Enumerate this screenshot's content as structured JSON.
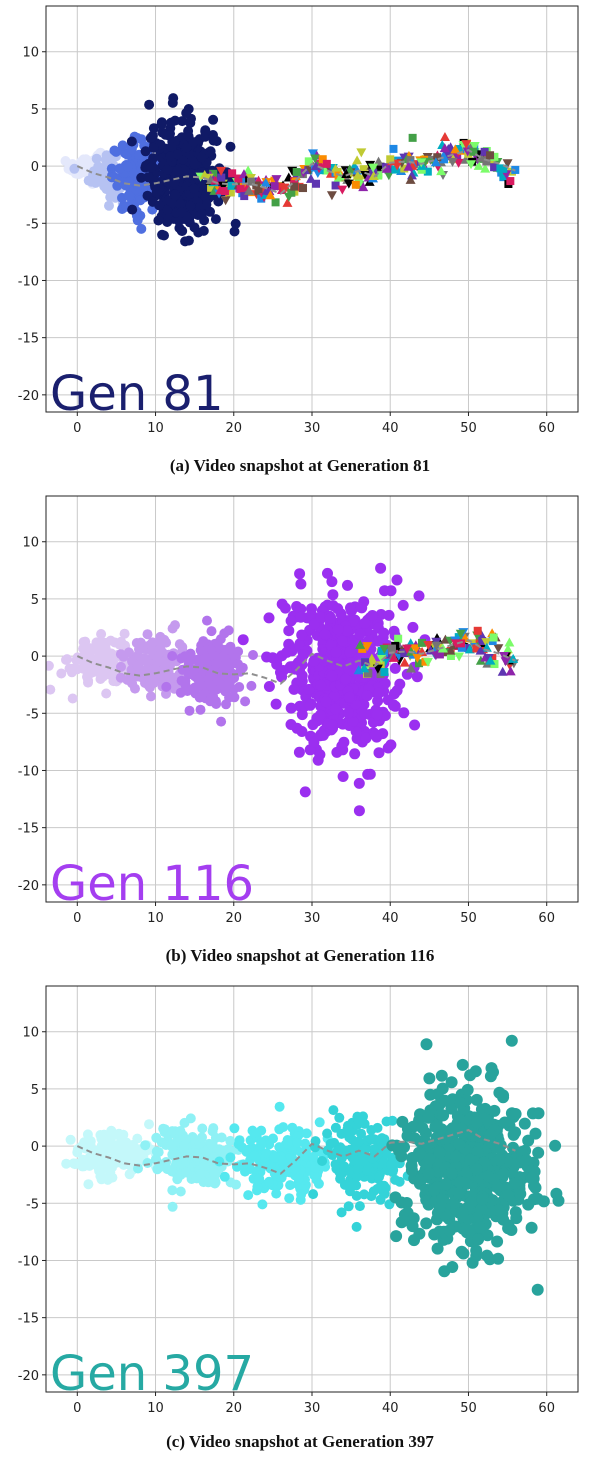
{
  "chart_data": [
    {
      "type": "scatter",
      "generation": 81,
      "label": "Gen 81",
      "label_color": "#1a1f6e",
      "caption": "(a) Video snapshot at Generation 81",
      "xlim": [
        -4,
        64
      ],
      "ylim": [
        -21.5,
        14
      ],
      "x_ticks": [
        0,
        10,
        20,
        30,
        40,
        50,
        60
      ],
      "y_ticks": [
        10,
        5,
        0,
        -5,
        -10,
        -15,
        -20
      ],
      "grid": true,
      "trend_path": {
        "x": [
          0,
          2,
          4,
          6,
          8,
          10,
          12,
          14,
          16,
          18,
          20,
          22,
          24,
          26,
          28,
          30,
          32,
          34,
          36,
          38,
          40,
          42,
          44,
          46,
          48,
          50,
          52,
          54,
          56
        ],
        "y": [
          0,
          -0.6,
          -1.0,
          -1.5,
          -1.7,
          -1.5,
          -1.2,
          -0.9,
          -1.0,
          -1.5,
          -1.6,
          -1.5,
          -1.9,
          -2.4,
          -1.2,
          0.2,
          -0.4,
          -0.9,
          -0.4,
          -0.9,
          0.3,
          0.4,
          0.2,
          0.6,
          1.0,
          1.4,
          0.6,
          0.2,
          -0.4
        ]
      },
      "clusters": [
        {
          "cx": 1,
          "cy": 0,
          "rx": 2,
          "ry": 1.5,
          "color": "#e4e8fb",
          "n": 40,
          "r": 5
        },
        {
          "cx": 4,
          "cy": -0.6,
          "rx": 2.5,
          "ry": 2,
          "color": "#b6c2f2",
          "n": 70,
          "r": 5
        },
        {
          "cx": 7.5,
          "cy": -0.9,
          "rx": 3,
          "ry": 3,
          "color": "#4f6fe0",
          "n": 110,
          "r": 5
        },
        {
          "cx": 13.5,
          "cy": -0.9,
          "rx": 4.5,
          "ry": 4.6,
          "color": "#101a66",
          "n": 420,
          "r": 5
        }
      ],
      "trail": [
        {
          "x": [
            16,
            18,
            20,
            22,
            24,
            26,
            28,
            30,
            32,
            34,
            36,
            38,
            40,
            42,
            44,
            46,
            48,
            50,
            52,
            54,
            55.5
          ],
          "y": [
            -1.2,
            -1.6,
            -1.6,
            -1.4,
            -1.8,
            -2.2,
            -1.2,
            0.2,
            -0.4,
            -0.9,
            -0.4,
            -0.9,
            0.3,
            0.4,
            0.2,
            0.6,
            1.0,
            1.4,
            0.6,
            0.2,
            -0.4
          ],
          "spread": 1.4
        }
      ]
    },
    {
      "type": "scatter",
      "generation": 116,
      "label": "Gen 116",
      "label_color": "#a43ef0",
      "caption": "(b) Video snapshot at Generation 116",
      "xlim": [
        -4,
        64
      ],
      "ylim": [
        -21.5,
        14
      ],
      "x_ticks": [
        0,
        10,
        20,
        30,
        40,
        50,
        60
      ],
      "y_ticks": [
        10,
        5,
        0,
        -5,
        -10,
        -15,
        -20
      ],
      "grid": true,
      "trend_path": {
        "x": [
          0,
          2,
          4,
          6,
          8,
          10,
          12,
          14,
          16,
          18,
          20,
          22,
          24,
          26,
          28,
          30,
          32,
          34,
          36,
          38,
          40,
          42,
          44,
          46,
          48,
          50,
          52,
          54,
          56
        ],
        "y": [
          0,
          -0.6,
          -1.0,
          -1.5,
          -1.7,
          -1.5,
          -1.2,
          -0.9,
          -1.0,
          -1.5,
          -1.6,
          -1.5,
          -1.9,
          -2.4,
          -1.2,
          0.2,
          -0.4,
          -0.9,
          -0.4,
          -0.9,
          0.3,
          0.4,
          0.2,
          0.6,
          1.0,
          1.4,
          0.6,
          0.2,
          -0.4
        ]
      },
      "clusters": [
        {
          "cx": 3,
          "cy": -0.4,
          "rx": 4,
          "ry": 2.2,
          "color": "#dcc6f2",
          "n": 120,
          "r": 5
        },
        {
          "cx": 10,
          "cy": -0.8,
          "rx": 4,
          "ry": 2.6,
          "color": "#c59aee",
          "n": 150,
          "r": 5
        },
        {
          "cx": 17.5,
          "cy": -1.3,
          "rx": 4,
          "ry": 2.8,
          "color": "#b274ec",
          "n": 170,
          "r": 5
        },
        {
          "cx": 33.5,
          "cy": -1.6,
          "rx": 7.5,
          "ry": 6.5,
          "color": "#9b2ff0",
          "n": 520,
          "r": 5.5
        }
      ],
      "trail": [
        {
          "x": [
            36,
            38,
            40,
            42,
            44,
            46,
            48,
            50,
            52,
            54,
            55.5
          ],
          "y": [
            -0.4,
            -0.9,
            0.3,
            0.4,
            0.2,
            0.6,
            1.0,
            1.4,
            0.6,
            0.2,
            -0.4
          ],
          "spread": 1.4
        }
      ]
    },
    {
      "type": "scatter",
      "generation": 397,
      "label": "Gen 397",
      "label_color": "#26a9a3",
      "caption": "(c) Video snapshot at Generation 397",
      "xlim": [
        -4,
        64
      ],
      "ylim": [
        -21.5,
        14
      ],
      "x_ticks": [
        0,
        10,
        20,
        30,
        40,
        50,
        60
      ],
      "y_ticks": [
        10,
        5,
        0,
        -5,
        -10,
        -15,
        -20
      ],
      "grid": true,
      "trend_path": {
        "x": [
          0,
          2,
          4,
          6,
          8,
          10,
          12,
          14,
          16,
          18,
          20,
          22,
          24,
          26,
          28,
          30,
          32,
          34,
          36,
          38,
          40,
          42,
          44,
          46,
          48,
          50,
          52,
          54,
          56
        ],
        "y": [
          0,
          -0.6,
          -1.0,
          -1.5,
          -1.7,
          -1.5,
          -1.2,
          -0.9,
          -1.0,
          -1.5,
          -1.6,
          -1.5,
          -1.9,
          -2.4,
          -1.2,
          0.2,
          -0.4,
          -0.9,
          -0.4,
          -0.9,
          0.3,
          0.4,
          0.2,
          0.6,
          1.0,
          1.4,
          0.6,
          0.2,
          -0.4
        ]
      },
      "clusters": [
        {
          "cx": 4.5,
          "cy": -0.9,
          "rx": 5,
          "ry": 2.2,
          "color": "#c4f8fa",
          "n": 140,
          "r": 5
        },
        {
          "cx": 15,
          "cy": -1.0,
          "rx": 5.5,
          "ry": 2.6,
          "color": "#8ff1f5",
          "n": 170,
          "r": 5
        },
        {
          "cx": 26,
          "cy": -1.4,
          "rx": 5.5,
          "ry": 3.0,
          "color": "#55e8ef",
          "n": 190,
          "r": 5
        },
        {
          "cx": 36,
          "cy": -1.2,
          "rx": 5,
          "ry": 3.4,
          "color": "#34d3d8",
          "n": 170,
          "r": 5
        },
        {
          "cx": 50,
          "cy": -1.9,
          "rx": 8,
          "ry": 6.8,
          "color": "#28a39c",
          "n": 560,
          "r": 6
        }
      ],
      "trail": []
    }
  ]
}
